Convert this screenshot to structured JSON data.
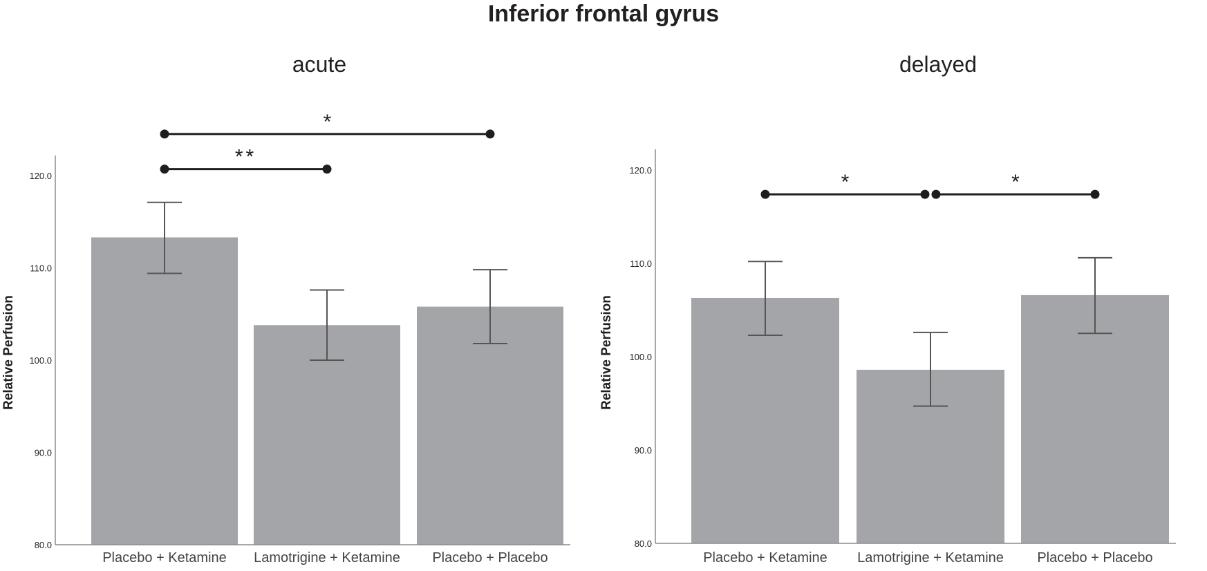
{
  "title": "Inferior frontal gyrus",
  "colors": {
    "bar": "#a4a5a9",
    "axis": "#8c8c8c",
    "error": "#555555",
    "bracket": "#1e1e1e",
    "text": "#231f20"
  },
  "chart_data": [
    {
      "type": "bar",
      "subtitle": "acute",
      "ylabel": "Relative Perfusion",
      "ylim": [
        80,
        120
      ],
      "yticks": [
        "80.0",
        "90.0",
        "100.0",
        "110.0",
        "120.0"
      ],
      "categories": [
        "Placebo + Ketamine",
        "Lamotrigine + Ketamine",
        "Placebo + Placebo"
      ],
      "values": [
        113.3,
        103.8,
        105.8
      ],
      "error_low": [
        109.4,
        100.0,
        101.8
      ],
      "error_high": [
        117.1,
        107.6,
        109.8
      ],
      "significance": [
        {
          "from": 0,
          "to": 2,
          "label": "*",
          "y": 124.5
        },
        {
          "from": 0,
          "to": 1,
          "label": "**",
          "y": 120.7
        }
      ],
      "grid": false
    },
    {
      "type": "bar",
      "subtitle": "delayed",
      "ylabel": "Relative Perfusion",
      "ylim": [
        80,
        120
      ],
      "yticks": [
        "80.0",
        "90.0",
        "100.0",
        "110.0",
        "120.0"
      ],
      "categories": [
        "Placebo + Ketamine",
        "Lamotrigine + Ketamine",
        "Placebo + Placebo"
      ],
      "values": [
        106.3,
        98.6,
        106.6
      ],
      "error_low": [
        102.3,
        94.7,
        102.5
      ],
      "error_high": [
        110.2,
        102.6,
        110.6
      ],
      "significance": [
        {
          "from": 0,
          "to": 1,
          "label": "*",
          "y": 117.4
        },
        {
          "from": 1,
          "to": 2,
          "label": "*",
          "y": 117.4
        }
      ],
      "grid": false
    }
  ]
}
